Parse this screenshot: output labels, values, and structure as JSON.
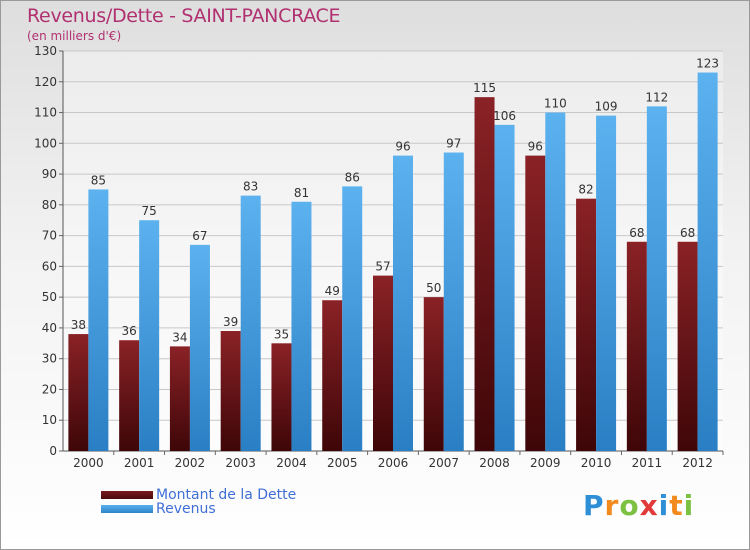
{
  "title": "Revenus/Dette - SAINT-PANCRACE",
  "subtitle": "(en milliers d'€)",
  "logo": {
    "text": "Proxiti",
    "colors": [
      "#2f8fd6",
      "#f28a1d",
      "#7cc142",
      "#e03a3a",
      "#2f8fd6",
      "#f28a1d",
      "#7cc142"
    ]
  },
  "colors": {
    "dette": "#7a1a1e",
    "revenus": "#4aa3e6",
    "title": "#b03070",
    "legend_text": "#3f6fd6"
  },
  "chart_data": {
    "type": "bar",
    "categories": [
      "2000",
      "2001",
      "2002",
      "2003",
      "2004",
      "2005",
      "2006",
      "2007",
      "2008",
      "2009",
      "2010",
      "2011",
      "2012"
    ],
    "series": [
      {
        "name": "Montant de la Dette",
        "values": [
          38,
          36,
          34,
          39,
          35,
          49,
          57,
          50,
          115,
          96,
          82,
          68,
          68
        ]
      },
      {
        "name": "Revenus",
        "values": [
          85,
          75,
          67,
          83,
          81,
          86,
          96,
          97,
          106,
          110,
          109,
          112,
          123
        ]
      }
    ],
    "ylim": [
      0,
      130
    ],
    "yticks": [
      0,
      10,
      20,
      30,
      40,
      50,
      60,
      70,
      80,
      90,
      100,
      110,
      120,
      130
    ],
    "grid": true,
    "legend_position": "bottom-left"
  }
}
